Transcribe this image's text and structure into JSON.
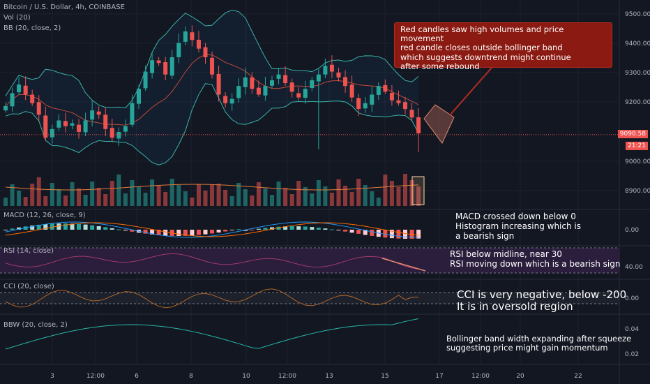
{
  "header": {
    "symbol": "Bitcoin / U.S. Dollar, 4h, COINBASE",
    "vol": "Vol (20)",
    "bb": "BB (20, close, 2)",
    "macd": "MACD (12, 26, close, 9)",
    "rsi": "RSI (14, close)",
    "cci": "CCI (20, close)",
    "bbw": "BBW (20, close, 2)"
  },
  "price_axis": {
    "ticks": [
      "9500.00",
      "9400.00",
      "9300.00",
      "9200.00",
      "9000.00",
      "8900.00"
    ],
    "current_price": "9090.58",
    "countdown": "21:21"
  },
  "macd_axis": {
    "ticks": [
      "0.00"
    ]
  },
  "rsi_axis": {
    "ticks": [
      "40.00"
    ]
  },
  "cci_axis": {
    "ticks": [
      "0.00"
    ]
  },
  "bbw_axis": {
    "ticks": [
      "0.04",
      "0.02"
    ]
  },
  "time_axis": {
    "ticks": [
      "3",
      "12:00",
      "6",
      "8",
      "10",
      "12:00",
      "13",
      "15",
      "17",
      "12:00",
      "20",
      "22"
    ]
  },
  "annotations": {
    "callout": "Red candles saw high volumes and price movement\nred candle closes outside bollinger band\nwhich suggests downtrend might continue\nafter some rebound",
    "macd_note": "MACD crossed down below 0\nHistogram increasing which is\na bearish sign",
    "rsi_note": "RSI below midline, near 30\nRSI moving down which is a bearish sign",
    "cci_note": "CCI is very negative, below -200\nIt is in oversold region",
    "bbw_note": "Bollinger band width expanding after squeeze\nsuggesting price might gain momentum"
  },
  "colors": {
    "background": "#131722",
    "up": "#26a69a",
    "down": "#ef5350",
    "bb_band": "#3bb3a7",
    "bb_basis": "#c2493b",
    "callout": "#8b1a12",
    "rsi_line": "#a03a6b",
    "rsi_fill": "#2a1e3c",
    "cci_line": "#b0662a",
    "bbw_line": "#27b5a6",
    "price_tag": "#ef5350"
  },
  "chart_data": {
    "type": "candlestick",
    "series": [
      {
        "name": "Bitcoin / U.S. Dollar, 4h, COINBASE",
        "values": [
          9190,
          9235,
          9265,
          9230,
          9200,
          9160,
          9080,
          9110,
          9140,
          9120,
          9130,
          9100,
          9140,
          9175,
          9160,
          9110,
          9080,
          9100,
          9120,
          9200,
          9250,
          9310,
          9350,
          9340,
          9300,
          9360,
          9410,
          9450,
          9420,
          9390,
          9360,
          9300,
          9230,
          9200,
          9215,
          9260,
          9290,
          9250,
          9230,
          9260,
          9280,
          9300,
          9270,
          9240,
          9220,
          9250,
          9280,
          9300,
          9330,
          9310,
          9290,
          9260,
          9220,
          9180,
          9200,
          9230,
          9260,
          9240,
          9210,
          9200,
          9180,
          9150,
          9095
        ]
      }
    ],
    "ylim": [
      8830,
      9540
    ]
  }
}
